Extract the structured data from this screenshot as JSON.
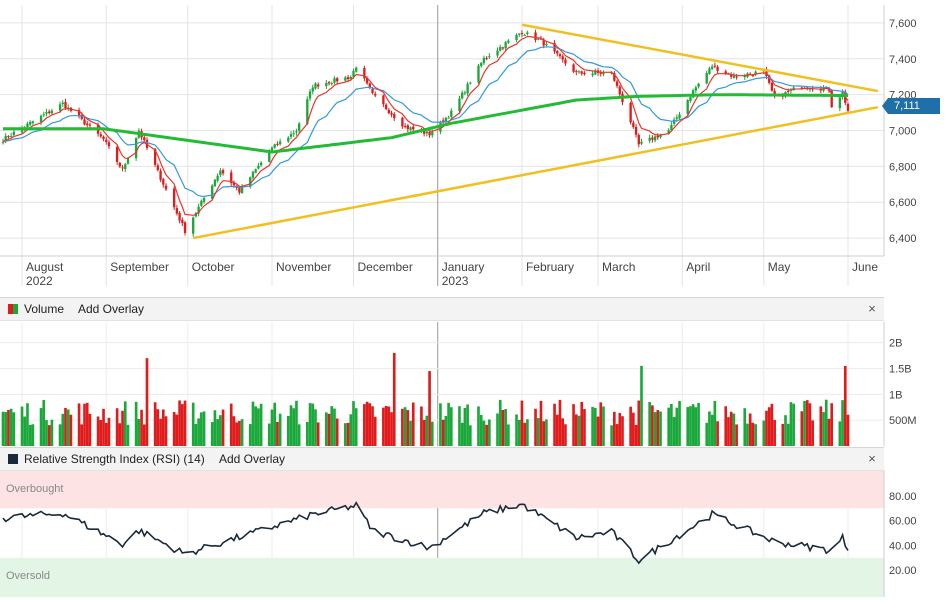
{
  "colors": {
    "up": "#1aa83a",
    "down": "#e01b1b",
    "ma_short": "#e8352e",
    "ma_mid": "#3399dd",
    "ma_long": "#22bb33",
    "trendline": "#f0c020",
    "rsi_line": "#1b2a3a",
    "overbought_band": "#fde3e3",
    "oversold_band": "#e3f6e6",
    "accent": "#1f6fa8"
  },
  "price_panel": {
    "y_ticks": [
      "7,600",
      "7,400",
      "7,200",
      "7,000",
      "6,800",
      "6,600",
      "6,400"
    ],
    "last_price": "7,111",
    "months": [
      {
        "label": "August",
        "sub": "2022"
      },
      {
        "label": "September",
        "sub": ""
      },
      {
        "label": "October",
        "sub": ""
      },
      {
        "label": "November",
        "sub": ""
      },
      {
        "label": "December",
        "sub": ""
      },
      {
        "label": "January",
        "sub": "2023"
      },
      {
        "label": "February",
        "sub": ""
      },
      {
        "label": "March",
        "sub": ""
      },
      {
        "label": "April",
        "sub": ""
      },
      {
        "label": "May",
        "sub": ""
      },
      {
        "label": "June",
        "sub": ""
      }
    ]
  },
  "volume_panel": {
    "title": "Volume",
    "add_overlay": "Add Overlay",
    "close": "×",
    "y_ticks": [
      "2B",
      "1.5B",
      "1B",
      "500M"
    ]
  },
  "rsi_panel": {
    "title": "Relative Strength Index (RSI) (14)",
    "add_overlay": "Add Overlay",
    "close": "×",
    "overbought_label": "Overbought",
    "oversold_label": "Oversold",
    "y_ticks": [
      "80.00",
      "60.00",
      "40.00",
      "20.00"
    ]
  },
  "chart_data": {
    "type": "line",
    "subtype": "candlestick with volume and RSI panels",
    "price": {
      "ylim": [
        6300,
        7700
      ],
      "start_date": "2022-07-25",
      "end_date": "2023-06-01",
      "key_points": [
        {
          "date": "2022-07-25",
          "close": 6950
        },
        {
          "date": "2022-08-16",
          "close": 7150
        },
        {
          "date": "2022-08-31",
          "close": 6950
        },
        {
          "date": "2022-09-07",
          "close": 6780
        },
        {
          "date": "2022-09-13",
          "close": 7000
        },
        {
          "date": "2022-09-30",
          "close": 6440
        },
        {
          "date": "2022-10-13",
          "close": 6780
        },
        {
          "date": "2022-10-20",
          "close": 6660
        },
        {
          "date": "2022-11-01",
          "close": 6900
        },
        {
          "date": "2022-11-10",
          "close": 7000
        },
        {
          "date": "2022-11-16",
          "close": 7250
        },
        {
          "date": "2022-11-30",
          "close": 7300
        },
        {
          "date": "2022-12-02",
          "close": 7360
        },
        {
          "date": "2022-12-08",
          "close": 7200
        },
        {
          "date": "2022-12-20",
          "close": 7020
        },
        {
          "date": "2022-12-29",
          "close": 6980
        },
        {
          "date": "2023-01-06",
          "close": 7100
        },
        {
          "date": "2023-01-18",
          "close": 7400
        },
        {
          "date": "2023-02-01",
          "close": 7550
        },
        {
          "date": "2023-02-08",
          "close": 7500
        },
        {
          "date": "2023-02-21",
          "close": 7320
        },
        {
          "date": "2023-03-06",
          "close": 7320
        },
        {
          "date": "2023-03-13",
          "close": 7050
        },
        {
          "date": "2023-03-16",
          "close": 6920
        },
        {
          "date": "2023-03-27",
          "close": 7000
        },
        {
          "date": "2023-04-05",
          "close": 7220
        },
        {
          "date": "2023-04-12",
          "close": 7360
        },
        {
          "date": "2023-04-20",
          "close": 7300
        },
        {
          "date": "2023-05-01",
          "close": 7330
        },
        {
          "date": "2023-05-05",
          "close": 7180
        },
        {
          "date": "2023-05-15",
          "close": 7250
        },
        {
          "date": "2023-05-25",
          "close": 7230
        },
        {
          "date": "2023-05-26",
          "close": 7140
        },
        {
          "date": "2023-05-30",
          "close": 7210
        },
        {
          "date": "2023-06-01",
          "close": 7111
        }
      ],
      "moving_averages": [
        {
          "color": "#e8352e",
          "desc": "short-term moving average (red)"
        },
        {
          "color": "#3399dd",
          "desc": "medium-term moving average (blue)"
        },
        {
          "color": "#22bb33",
          "desc": "long-term moving average (green)",
          "key_points": [
            {
              "date": "2022-07-25",
              "value": 7010
            },
            {
              "date": "2022-08-31",
              "value": 7010
            },
            {
              "date": "2022-09-19",
              "value": 6970
            },
            {
              "date": "2022-11-01",
              "value": 6880
            },
            {
              "date": "2022-12-15",
              "value": 6960
            },
            {
              "date": "2023-01-06",
              "value": 7040
            },
            {
              "date": "2023-02-21",
              "value": 7170
            },
            {
              "date": "2023-03-15",
              "value": 7190
            },
            {
              "date": "2023-04-15",
              "value": 7200
            },
            {
              "date": "2023-06-01",
              "value": 7195
            }
          ]
        }
      ],
      "trendlines": [
        {
          "name": "upper",
          "from": {
            "date": "2023-02-01",
            "value": 7590
          },
          "to": {
            "date": "2023-06-12",
            "value": 7220
          }
        },
        {
          "name": "lower",
          "from": {
            "date": "2022-10-03",
            "value": 6400
          },
          "to": {
            "date": "2023-06-12",
            "value": 7130
          }
        }
      ]
    },
    "volume": {
      "unit": "shares",
      "ylim": [
        0,
        2400000000
      ],
      "notable_spikes": [
        {
          "date": "2022-09-16",
          "value": 1700000000
        },
        {
          "date": "2022-12-16",
          "value": 1800000000
        },
        {
          "date": "2022-12-29",
          "value": 1450000000
        },
        {
          "date": "2023-03-17",
          "value": 1550000000
        },
        {
          "date": "2023-05-31",
          "value": 1550000000
        }
      ],
      "typical_range": [
        400000000,
        900000000
      ]
    },
    "rsi": {
      "period": 14,
      "ylim": [
        0,
        100
      ],
      "overbought": 70,
      "oversold": 30,
      "key_points": [
        {
          "date": "2022-07-25",
          "value": 62
        },
        {
          "date": "2022-08-16",
          "value": 66
        },
        {
          "date": "2022-09-07",
          "value": 41
        },
        {
          "date": "2022-09-13",
          "value": 52
        },
        {
          "date": "2022-09-30",
          "value": 33
        },
        {
          "date": "2022-11-16",
          "value": 65
        },
        {
          "date": "2022-12-02",
          "value": 72
        },
        {
          "date": "2022-12-08",
          "value": 52
        },
        {
          "date": "2022-12-29",
          "value": 38
        },
        {
          "date": "2023-01-18",
          "value": 66
        },
        {
          "date": "2023-02-01",
          "value": 73
        },
        {
          "date": "2023-02-21",
          "value": 46
        },
        {
          "date": "2023-03-06",
          "value": 51
        },
        {
          "date": "2023-03-16",
          "value": 28
        },
        {
          "date": "2023-04-12",
          "value": 65
        },
        {
          "date": "2023-05-05",
          "value": 43
        },
        {
          "date": "2023-05-26",
          "value": 36
        },
        {
          "date": "2023-05-30",
          "value": 46
        },
        {
          "date": "2023-06-01",
          "value": 37
        }
      ]
    }
  }
}
